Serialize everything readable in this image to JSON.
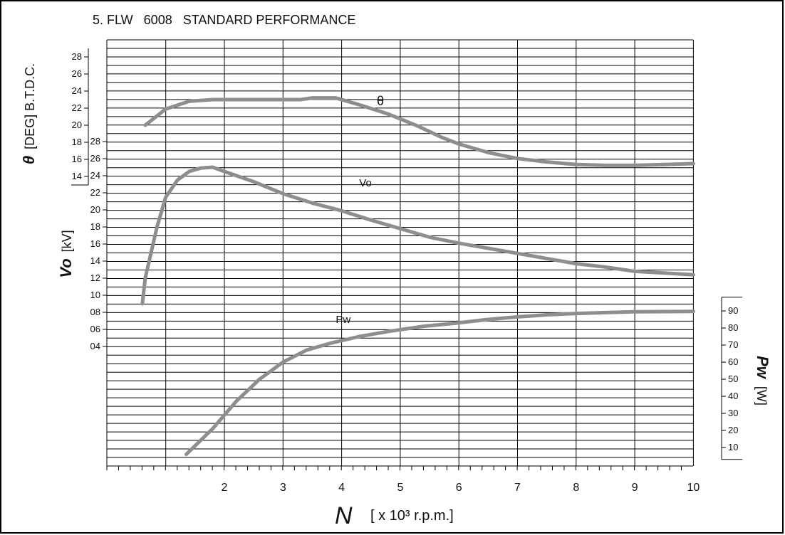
{
  "chart_data": {
    "type": "line",
    "title": "5. FLW   6008   STANDARD PERFORMANCE",
    "x_axis": {
      "symbol": "N",
      "unit": "[ x 10³ r.p.m.]",
      "tick_labels": [
        "2",
        "3",
        "4",
        "5",
        "6",
        "7",
        "8",
        "9",
        "10"
      ],
      "range": [
        0.25,
        10
      ]
    },
    "theta_axis": {
      "symbol": "θ",
      "label": "[DEG] B.T.D.C.",
      "tick_labels": [
        "28",
        "26",
        "24",
        "22",
        "20",
        "18",
        "16",
        "14"
      ]
    },
    "vo_axis": {
      "symbol": "Vo",
      "label": "[kV]",
      "tick_labels": [
        "28",
        "26",
        "24",
        "22",
        "20",
        "18",
        "16",
        "14",
        "12",
        "10",
        "08",
        "06",
        "04"
      ]
    },
    "pw_axis": {
      "symbol": "Pw",
      "label": "[W]",
      "tick_labels": [
        "90",
        "80",
        "70",
        "60",
        "50",
        "40",
        "30",
        "20",
        "10"
      ]
    },
    "series": [
      {
        "name": "θ",
        "x": [
          0.65,
          1.0,
          1.4,
          1.8,
          2.5,
          3.0,
          3.3,
          3.5,
          3.9,
          4.3,
          4.8,
          5.3,
          5.7,
          6.0,
          6.5,
          7.0,
          7.5,
          8.0,
          8.5,
          9.0,
          9.5,
          10.0
        ],
        "y": [
          20.0,
          21.9,
          22.8,
          23.0,
          23.0,
          23.0,
          23.0,
          23.2,
          23.2,
          22.4,
          21.3,
          19.9,
          18.6,
          17.8,
          16.8,
          16.1,
          15.7,
          15.4,
          15.3,
          15.3,
          15.4,
          15.5
        ]
      },
      {
        "name": "Vo",
        "x": [
          0.6,
          0.65,
          0.75,
          0.85,
          1.0,
          1.2,
          1.4,
          1.6,
          1.8,
          2.0,
          2.5,
          3.0,
          3.5,
          4.0,
          4.5,
          5.0,
          5.5,
          6.0,
          6.5,
          7.0,
          7.5,
          8.0,
          8.5,
          9.0,
          9.5,
          10.0
        ],
        "y": [
          9.0,
          12.0,
          15.0,
          18.0,
          21.5,
          23.5,
          24.5,
          24.9,
          25.0,
          24.5,
          23.3,
          21.9,
          20.8,
          19.9,
          18.8,
          17.8,
          16.8,
          16.1,
          15.5,
          14.9,
          14.3,
          13.7,
          13.3,
          12.8,
          12.6,
          12.4
        ]
      },
      {
        "name": "Pw",
        "x": [
          1.35,
          1.8,
          2.2,
          2.6,
          3.0,
          3.4,
          3.8,
          4.3,
          4.8,
          5.4,
          6.0,
          6.5,
          7.0,
          7.5,
          8.0,
          8.5,
          9.0,
          9.5,
          10.0
        ],
        "y": [
          6.0,
          21.0,
          37.0,
          50.0,
          60.0,
          67.0,
          71.0,
          75.0,
          78.0,
          81.0,
          83.0,
          85.0,
          86.5,
          87.7,
          88.5,
          89.0,
          89.5,
          89.6,
          89.7
        ]
      }
    ]
  }
}
